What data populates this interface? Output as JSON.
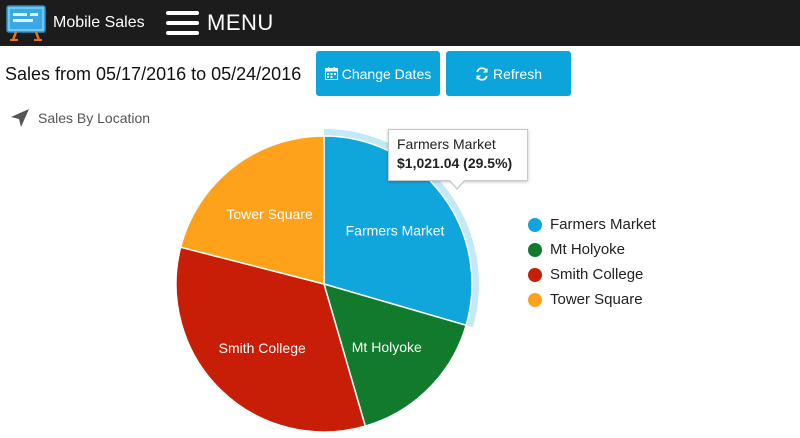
{
  "header": {
    "app_name": "Mobile Sales",
    "menu_label": "MENU"
  },
  "toolbar": {
    "sales_range": "Sales from 05/17/2016 to 05/24/2016",
    "change_dates_label": "Change Dates",
    "refresh_label": "Refresh"
  },
  "section": {
    "title": "Sales By Location",
    "icon": "location-arrow-icon"
  },
  "colors": {
    "accent": "#0ba5dc",
    "farmers_market": "#10a6dc",
    "mt_holyoke": "#117a2c",
    "smith_college": "#c81e07",
    "tower_square": "#ffa21b"
  },
  "tooltip": {
    "title": "Farmers Market",
    "value": "$1,021.04 (29.5%)"
  },
  "chart_data": {
    "type": "pie",
    "title": "",
    "categories": [
      "Farmers Market",
      "Mt Holyoke",
      "Smith College",
      "Tower Square"
    ],
    "values": [
      29.5,
      16.0,
      33.5,
      21.0
    ],
    "highlighted": "Farmers Market",
    "legend": [
      "Farmers Market",
      "Mt Holyoke",
      "Smith College",
      "Tower Square"
    ],
    "legend_position": "right"
  }
}
